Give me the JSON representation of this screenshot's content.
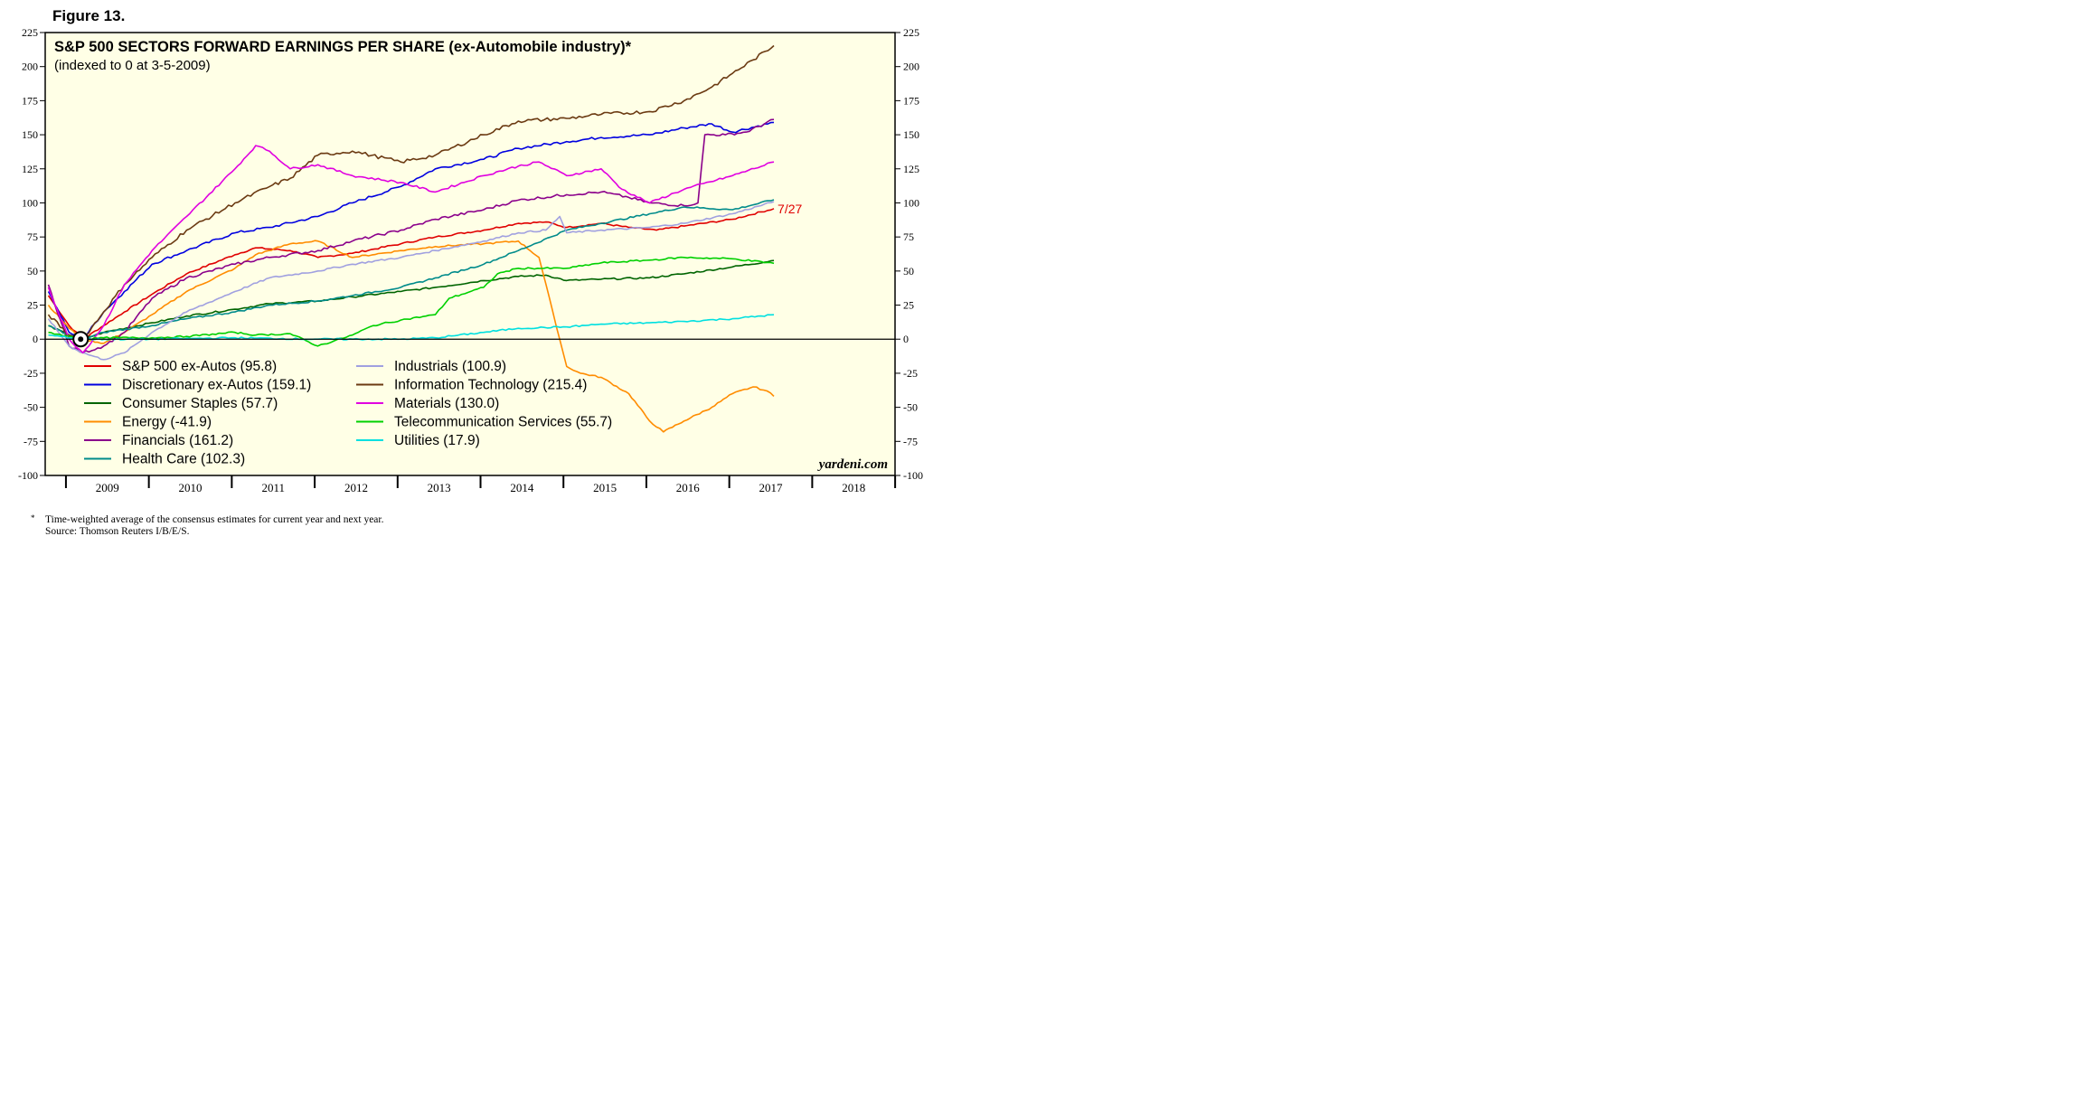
{
  "figure_label": "Figure 13.",
  "footnote": {
    "marker": "*",
    "text": "Time-weighted average of the consensus estimates for current year and next year.",
    "source": "Source: Thomson Reuters I/B/E/S."
  },
  "watermark": "yardeni.com",
  "end_label": "7/27",
  "colors": {
    "background": "#FFFFE6",
    "zero_line": "#000000",
    "end_label": "#E00000"
  },
  "chart_data": {
    "type": "line",
    "title": "S&P 500 SECTORS FORWARD EARNINGS PER SHARE (ex-Automobile industry)*",
    "subtitle": "(indexed to 0 at 3-5-2009)",
    "xlabel": "",
    "ylabel": "",
    "x_range": [
      "2008-10-01",
      "2018-12-31"
    ],
    "ylim": [
      -100,
      225
    ],
    "yticks": [
      225,
      200,
      175,
      150,
      125,
      100,
      75,
      50,
      25,
      0,
      -25,
      -50,
      -75,
      -100
    ],
    "x_tick_labels": [
      "2009",
      "2010",
      "2011",
      "2012",
      "2013",
      "2014",
      "2015",
      "2016",
      "2017",
      "2018"
    ],
    "index_point": {
      "x": "2009-03-05",
      "y": 0
    },
    "grid": false,
    "legend_placement": "bottom-left, inside plot",
    "series": [
      {
        "name": "S&P 500 ex-Autos (95.8)",
        "color": "#E00000",
        "points": [
          [
            "2008-10",
            32
          ],
          [
            "2009-01",
            10
          ],
          [
            "2009-03",
            0
          ],
          [
            "2009-06",
            10
          ],
          [
            "2009-09",
            20
          ],
          [
            "2010-01",
            33
          ],
          [
            "2010-06",
            48
          ],
          [
            "2011-01",
            62
          ],
          [
            "2011-04",
            67
          ],
          [
            "2011-09",
            65
          ],
          [
            "2012-01",
            60
          ],
          [
            "2012-06",
            63
          ],
          [
            "2013-01",
            70
          ],
          [
            "2013-06",
            75
          ],
          [
            "2014-01",
            80
          ],
          [
            "2014-06",
            85
          ],
          [
            "2014-10",
            86
          ],
          [
            "2015-01",
            82
          ],
          [
            "2015-06",
            85
          ],
          [
            "2015-10",
            82
          ],
          [
            "2016-02",
            80
          ],
          [
            "2016-06",
            83
          ],
          [
            "2017-01",
            88
          ],
          [
            "2017-07",
            95.8
          ]
        ]
      },
      {
        "name": "Discretionary ex-Autos (159.1)",
        "color": "#0000E0",
        "points": [
          [
            "2008-10",
            35
          ],
          [
            "2009-01",
            5
          ],
          [
            "2009-03",
            0
          ],
          [
            "2009-06",
            20
          ],
          [
            "2009-09",
            35
          ],
          [
            "2010-01",
            55
          ],
          [
            "2010-06",
            65
          ],
          [
            "2011-01",
            78
          ],
          [
            "2011-06",
            82
          ],
          [
            "2012-01",
            90
          ],
          [
            "2012-06",
            100
          ],
          [
            "2013-01",
            112
          ],
          [
            "2013-06",
            125
          ],
          [
            "2014-01",
            132
          ],
          [
            "2014-06",
            140
          ],
          [
            "2015-01",
            145
          ],
          [
            "2015-06",
            148
          ],
          [
            "2016-01",
            150
          ],
          [
            "2016-06",
            155
          ],
          [
            "2016-10",
            158
          ],
          [
            "2017-01",
            152
          ],
          [
            "2017-07",
            159.1
          ]
        ]
      },
      {
        "name": "Consumer Staples (57.7)",
        "color": "#006400",
        "points": [
          [
            "2008-10",
            10
          ],
          [
            "2009-01",
            3
          ],
          [
            "2009-03",
            0
          ],
          [
            "2009-06",
            5
          ],
          [
            "2010-01",
            12
          ],
          [
            "2010-06",
            17
          ],
          [
            "2011-01",
            22
          ],
          [
            "2011-06",
            26
          ],
          [
            "2012-01",
            28
          ],
          [
            "2012-06",
            31
          ],
          [
            "2013-01",
            35
          ],
          [
            "2013-06",
            38
          ],
          [
            "2014-01",
            43
          ],
          [
            "2014-06",
            46
          ],
          [
            "2014-10",
            47
          ],
          [
            "2015-01",
            43
          ],
          [
            "2015-06",
            44
          ],
          [
            "2016-01",
            45
          ],
          [
            "2016-06",
            48
          ],
          [
            "2017-01",
            53
          ],
          [
            "2017-07",
            57.7
          ]
        ]
      },
      {
        "name": "Energy (-41.9)",
        "color": "#FF8C00",
        "points": [
          [
            "2008-10",
            25
          ],
          [
            "2009-01",
            8
          ],
          [
            "2009-03",
            0
          ],
          [
            "2009-06",
            -3
          ],
          [
            "2009-09",
            5
          ],
          [
            "2010-01",
            18
          ],
          [
            "2010-06",
            35
          ],
          [
            "2011-01",
            52
          ],
          [
            "2011-04",
            62
          ],
          [
            "2011-09",
            70
          ],
          [
            "2012-01",
            72
          ],
          [
            "2012-06",
            60
          ],
          [
            "2013-01",
            65
          ],
          [
            "2013-06",
            68
          ],
          [
            "2014-01",
            70
          ],
          [
            "2014-06",
            72
          ],
          [
            "2014-09",
            60
          ],
          [
            "2014-11",
            20
          ],
          [
            "2015-01",
            -20
          ],
          [
            "2015-03",
            -25
          ],
          [
            "2015-06",
            -28
          ],
          [
            "2015-10",
            -40
          ],
          [
            "2016-01",
            -60
          ],
          [
            "2016-03",
            -68
          ],
          [
            "2016-06",
            -60
          ],
          [
            "2016-10",
            -50
          ],
          [
            "2017-01",
            -40
          ],
          [
            "2017-04",
            -35
          ],
          [
            "2017-06",
            -38
          ],
          [
            "2017-07",
            -41.9
          ]
        ]
      },
      {
        "name": "Financials (161.2)",
        "color": "#8B008B",
        "points": [
          [
            "2008-10",
            40
          ],
          [
            "2009-01",
            -5
          ],
          [
            "2009-03",
            -10
          ],
          [
            "2009-06",
            -5
          ],
          [
            "2009-09",
            5
          ],
          [
            "2010-01",
            30
          ],
          [
            "2010-06",
            45
          ],
          [
            "2011-01",
            55
          ],
          [
            "2011-06",
            60
          ],
          [
            "2012-01",
            65
          ],
          [
            "2012-06",
            72
          ],
          [
            "2013-01",
            80
          ],
          [
            "2013-06",
            88
          ],
          [
            "2014-01",
            95
          ],
          [
            "2014-06",
            102
          ],
          [
            "2015-01",
            106
          ],
          [
            "2015-06",
            108
          ],
          [
            "2015-10",
            104
          ],
          [
            "2016-01",
            100
          ],
          [
            "2016-06",
            98
          ],
          [
            "2016-08",
            100
          ],
          [
            "2016-09",
            150
          ],
          [
            "2016-12",
            150
          ],
          [
            "2017-03",
            152
          ],
          [
            "2017-07",
            161.2
          ]
        ]
      },
      {
        "name": "Health Care (102.3)",
        "color": "#008B8B",
        "points": [
          [
            "2008-10",
            10
          ],
          [
            "2009-01",
            3
          ],
          [
            "2009-03",
            0
          ],
          [
            "2009-06",
            5
          ],
          [
            "2010-01",
            10
          ],
          [
            "2010-06",
            15
          ],
          [
            "2011-01",
            20
          ],
          [
            "2011-06",
            25
          ],
          [
            "2012-01",
            28
          ],
          [
            "2012-06",
            32
          ],
          [
            "2013-01",
            38
          ],
          [
            "2013-06",
            45
          ],
          [
            "2014-01",
            55
          ],
          [
            "2014-06",
            65
          ],
          [
            "2015-01",
            80
          ],
          [
            "2015-06",
            85
          ],
          [
            "2016-01",
            92
          ],
          [
            "2016-06",
            97
          ],
          [
            "2017-01",
            95
          ],
          [
            "2017-07",
            102.3
          ]
        ]
      },
      {
        "name": "Industrials (100.9)",
        "color": "#A0A0E0",
        "points": [
          [
            "2008-10",
            15
          ],
          [
            "2009-01",
            -5
          ],
          [
            "2009-03",
            -10
          ],
          [
            "2009-06",
            -15
          ],
          [
            "2009-09",
            -10
          ],
          [
            "2010-01",
            5
          ],
          [
            "2010-06",
            20
          ],
          [
            "2011-01",
            35
          ],
          [
            "2011-06",
            45
          ],
          [
            "2012-01",
            50
          ],
          [
            "2012-06",
            55
          ],
          [
            "2013-01",
            60
          ],
          [
            "2013-06",
            65
          ],
          [
            "2014-01",
            72
          ],
          [
            "2014-06",
            78
          ],
          [
            "2014-10",
            80
          ],
          [
            "2014-12",
            90
          ],
          [
            "2015-01",
            78
          ],
          [
            "2015-06",
            80
          ],
          [
            "2016-01",
            82
          ],
          [
            "2016-06",
            85
          ],
          [
            "2017-01",
            92
          ],
          [
            "2017-07",
            100.9
          ]
        ]
      },
      {
        "name": "Information Technology (215.4)",
        "color": "#6B3A12",
        "points": [
          [
            "2008-10",
            18
          ],
          [
            "2009-01",
            3
          ],
          [
            "2009-03",
            0
          ],
          [
            "2009-06",
            20
          ],
          [
            "2009-09",
            40
          ],
          [
            "2010-01",
            60
          ],
          [
            "2010-06",
            80
          ],
          [
            "2011-01",
            100
          ],
          [
            "2011-06",
            112
          ],
          [
            "2011-09",
            118
          ],
          [
            "2012-01",
            135
          ],
          [
            "2012-06",
            138
          ],
          [
            "2013-01",
            130
          ],
          [
            "2013-06",
            135
          ],
          [
            "2014-01",
            150
          ],
          [
            "2014-06",
            160
          ],
          [
            "2015-01",
            162
          ],
          [
            "2015-06",
            165
          ],
          [
            "2016-01",
            167
          ],
          [
            "2016-06",
            175
          ],
          [
            "2016-10",
            185
          ],
          [
            "2017-01",
            195
          ],
          [
            "2017-04",
            205
          ],
          [
            "2017-07",
            215.4
          ]
        ]
      },
      {
        "name": "Materials (130.0)",
        "color": "#E000E0",
        "points": [
          [
            "2008-10",
            38
          ],
          [
            "2009-01",
            0
          ],
          [
            "2009-03",
            -10
          ],
          [
            "2009-06",
            10
          ],
          [
            "2009-09",
            40
          ],
          [
            "2010-01",
            65
          ],
          [
            "2010-06",
            90
          ],
          [
            "2011-01",
            125
          ],
          [
            "2011-04",
            142
          ],
          [
            "2011-06",
            138
          ],
          [
            "2011-09",
            125
          ],
          [
            "2012-01",
            128
          ],
          [
            "2012-06",
            120
          ],
          [
            "2013-01",
            115
          ],
          [
            "2013-06",
            108
          ],
          [
            "2014-01",
            120
          ],
          [
            "2014-06",
            127
          ],
          [
            "2014-09",
            130
          ],
          [
            "2015-01",
            120
          ],
          [
            "2015-06",
            125
          ],
          [
            "2015-09",
            110
          ],
          [
            "2016-01",
            100
          ],
          [
            "2016-06",
            110
          ],
          [
            "2017-01",
            120
          ],
          [
            "2017-07",
            130.0
          ]
        ]
      },
      {
        "name": "Telecommunication Services (55.7)",
        "color": "#00D000",
        "points": [
          [
            "2008-10",
            5
          ],
          [
            "2009-01",
            2
          ],
          [
            "2009-03",
            0
          ],
          [
            "2009-06",
            1
          ],
          [
            "2010-01",
            1
          ],
          [
            "2010-06",
            2
          ],
          [
            "2011-01",
            5
          ],
          [
            "2011-04",
            3
          ],
          [
            "2011-09",
            4
          ],
          [
            "2012-01",
            -5
          ],
          [
            "2012-06",
            3
          ],
          [
            "2012-09",
            10
          ],
          [
            "2013-01",
            14
          ],
          [
            "2013-06",
            18
          ],
          [
            "2013-08",
            30
          ],
          [
            "2014-01",
            38
          ],
          [
            "2014-03",
            48
          ],
          [
            "2014-06",
            52
          ],
          [
            "2015-01",
            52
          ],
          [
            "2015-06",
            56
          ],
          [
            "2016-01",
            58
          ],
          [
            "2016-06",
            60
          ],
          [
            "2017-01",
            59
          ],
          [
            "2017-07",
            55.7
          ]
        ]
      },
      {
        "name": "Utilities (17.9)",
        "color": "#00E0E0",
        "points": [
          [
            "2008-10",
            3
          ],
          [
            "2009-03",
            0
          ],
          [
            "2010-01",
            0
          ],
          [
            "2011-01",
            1
          ],
          [
            "2012-01",
            0
          ],
          [
            "2013-01",
            0
          ],
          [
            "2013-06",
            1
          ],
          [
            "2014-01",
            5
          ],
          [
            "2014-06",
            8
          ],
          [
            "2015-01",
            9
          ],
          [
            "2015-06",
            11
          ],
          [
            "2016-01",
            12
          ],
          [
            "2016-06",
            13
          ],
          [
            "2017-01",
            15
          ],
          [
            "2017-07",
            17.9
          ]
        ]
      }
    ]
  }
}
